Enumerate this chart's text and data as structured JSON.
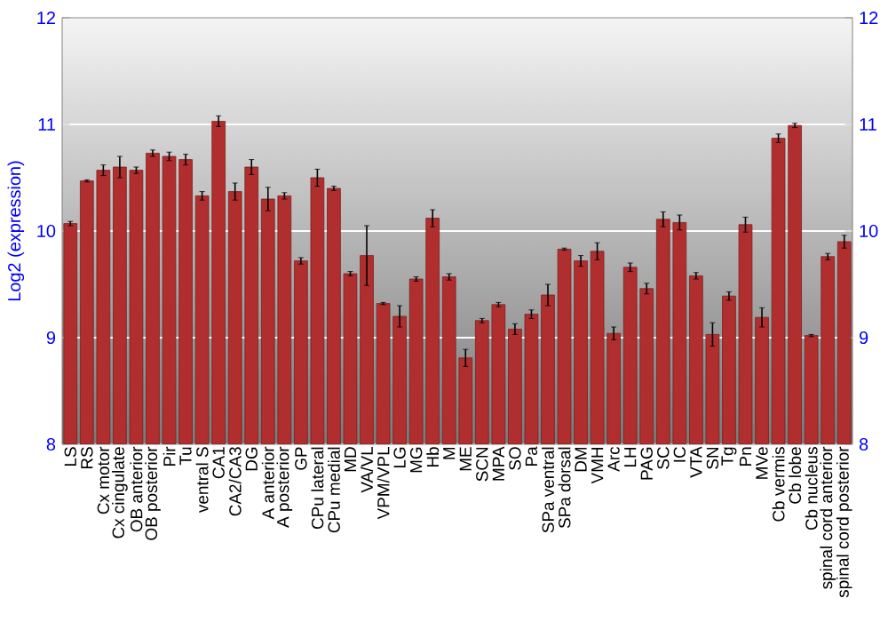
{
  "chart_data": {
    "type": "bar",
    "ylabel": "Log2 (expression)",
    "categories": [
      "LS",
      "RS",
      "Cx motor",
      "Cx cingulate",
      "OB anterior",
      "OB posterior",
      "Pir",
      "Tu",
      "ventral S",
      "CA1",
      "CA2/CA3",
      "DG",
      "A anterior",
      "A posterior",
      "GP",
      "CPu lateral",
      "CPu medial",
      "MD",
      "VA/VL",
      "VPM/VPL",
      "LG",
      "MG",
      "Hb",
      "M",
      "ME",
      "SCN",
      "MPA",
      "SO",
      "Pa",
      "SPa ventral",
      "SPa dorsal",
      "DM",
      "VMH",
      "Arc",
      "LH",
      "PAG",
      "SC",
      "IC",
      "VTA",
      "SN",
      "Tg",
      "Pn",
      "MVe",
      "Cb vermis",
      "Cb lobe",
      "Cb nucleus",
      "spinal cord anterior",
      "spinal cord posterior"
    ],
    "values": [
      10.07,
      10.47,
      10.57,
      10.6,
      10.57,
      10.73,
      10.7,
      10.67,
      10.33,
      11.03,
      10.37,
      10.6,
      10.3,
      10.33,
      9.72,
      10.5,
      10.4,
      9.6,
      9.77,
      9.32,
      9.2,
      9.55,
      10.12,
      9.57,
      8.81,
      9.16,
      9.31,
      9.08,
      9.22,
      9.4,
      9.83,
      9.72,
      9.81,
      9.04,
      9.66,
      9.46,
      10.11,
      10.08,
      9.58,
      9.03,
      9.39,
      10.06,
      9.19,
      10.87,
      10.99,
      9.02,
      9.76,
      9.9
    ],
    "errors": [
      0.02,
      0.01,
      0.05,
      0.1,
      0.03,
      0.03,
      0.04,
      0.05,
      0.04,
      0.05,
      0.08,
      0.07,
      0.11,
      0.03,
      0.03,
      0.08,
      0.02,
      0.02,
      0.28,
      0.01,
      0.1,
      0.02,
      0.08,
      0.03,
      0.08,
      0.02,
      0.02,
      0.05,
      0.04,
      0.1,
      0.01,
      0.05,
      0.08,
      0.06,
      0.04,
      0.05,
      0.07,
      0.07,
      0.03,
      0.11,
      0.04,
      0.07,
      0.09,
      0.04,
      0.02,
      0.01,
      0.03,
      0.06
    ],
    "color": "#b02e2e",
    "ylim": [
      8,
      12
    ],
    "yticks": [
      8,
      9,
      10,
      11,
      12
    ],
    "y2lim": [
      8,
      12
    ],
    "y2ticks": [
      8,
      9,
      10,
      11,
      12
    ],
    "grid": "y"
  }
}
